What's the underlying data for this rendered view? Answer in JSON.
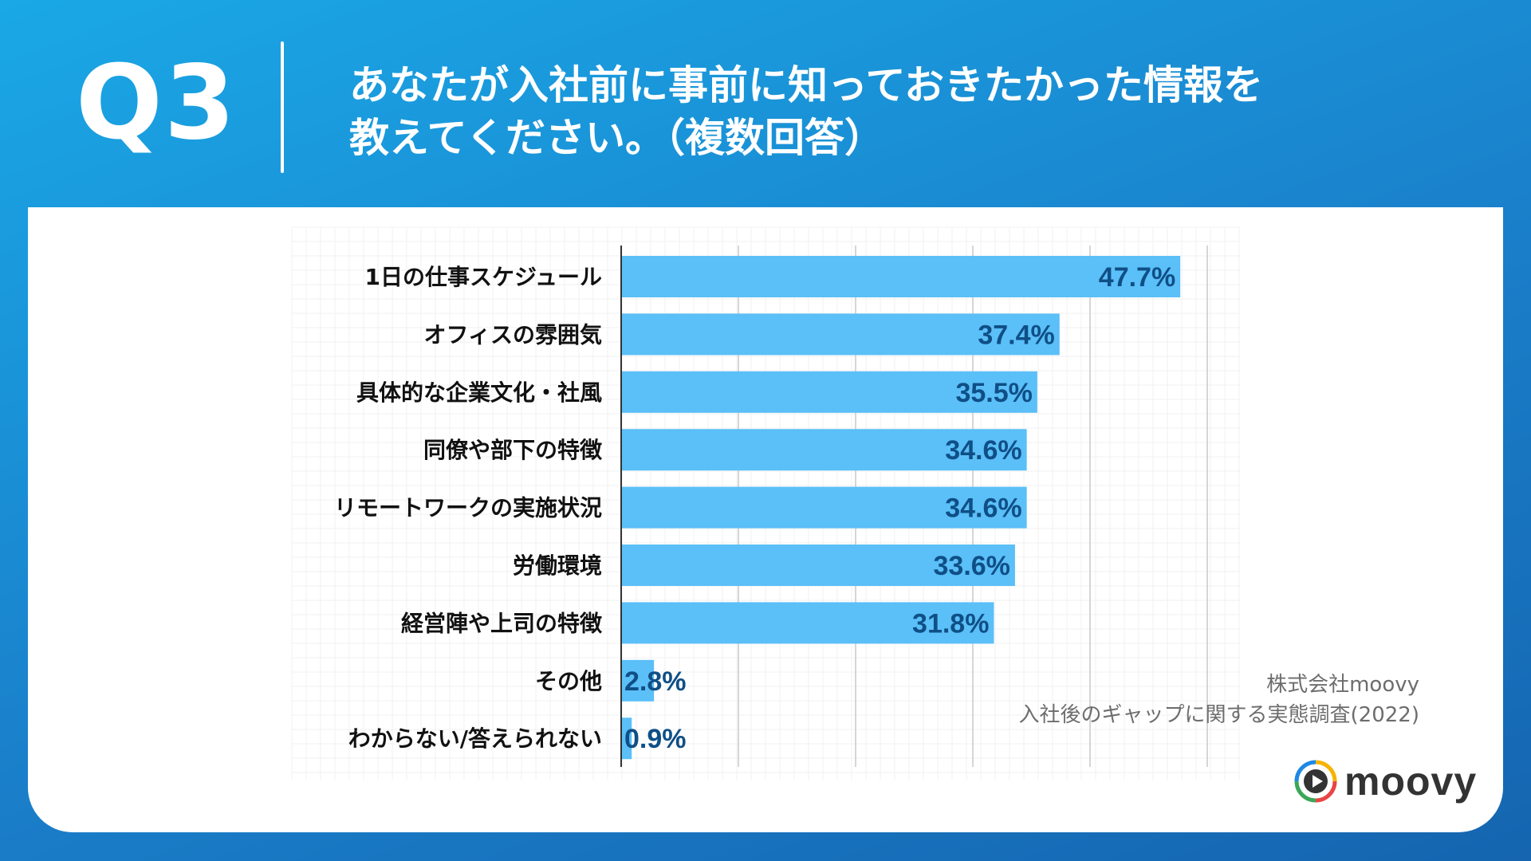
{
  "header": {
    "question_number": "Q3",
    "question_line1": "あなたが入社前に事前に知っておきたかった情報を",
    "question_line2": "教えてください。（複数回答）"
  },
  "chart_data": {
    "type": "bar",
    "orientation": "horizontal",
    "categories": [
      "1日の仕事スケジュール",
      "オフィスの雰囲気",
      "具体的な企業文化・社風",
      "同僚や部下の特徴",
      "リモートワークの実施状況",
      "労働環境",
      "経営陣や上司の特徴",
      "その他",
      "わからない/答えられない"
    ],
    "values": [
      47.7,
      37.4,
      35.5,
      34.6,
      34.6,
      33.6,
      31.8,
      2.8,
      0.9
    ],
    "value_labels": [
      "47.7%",
      "37.4%",
      "35.5%",
      "34.6%",
      "34.6%",
      "33.6%",
      "31.8%",
      "2.8%",
      "0.9%"
    ],
    "xlim": [
      0,
      50
    ],
    "grid": true,
    "bar_color": "#5bbff8",
    "label_color": "#0f4f86"
  },
  "source": {
    "line1": "株式会社moovy",
    "line2": "入社後のギャップに関する実態調査(2022)"
  },
  "logo": {
    "text": "moovy",
    "icon": "play-circle-icon"
  },
  "colors": {
    "background_start": "#1aa8e6",
    "background_end": "#1565b0",
    "card": "#ffffff"
  }
}
